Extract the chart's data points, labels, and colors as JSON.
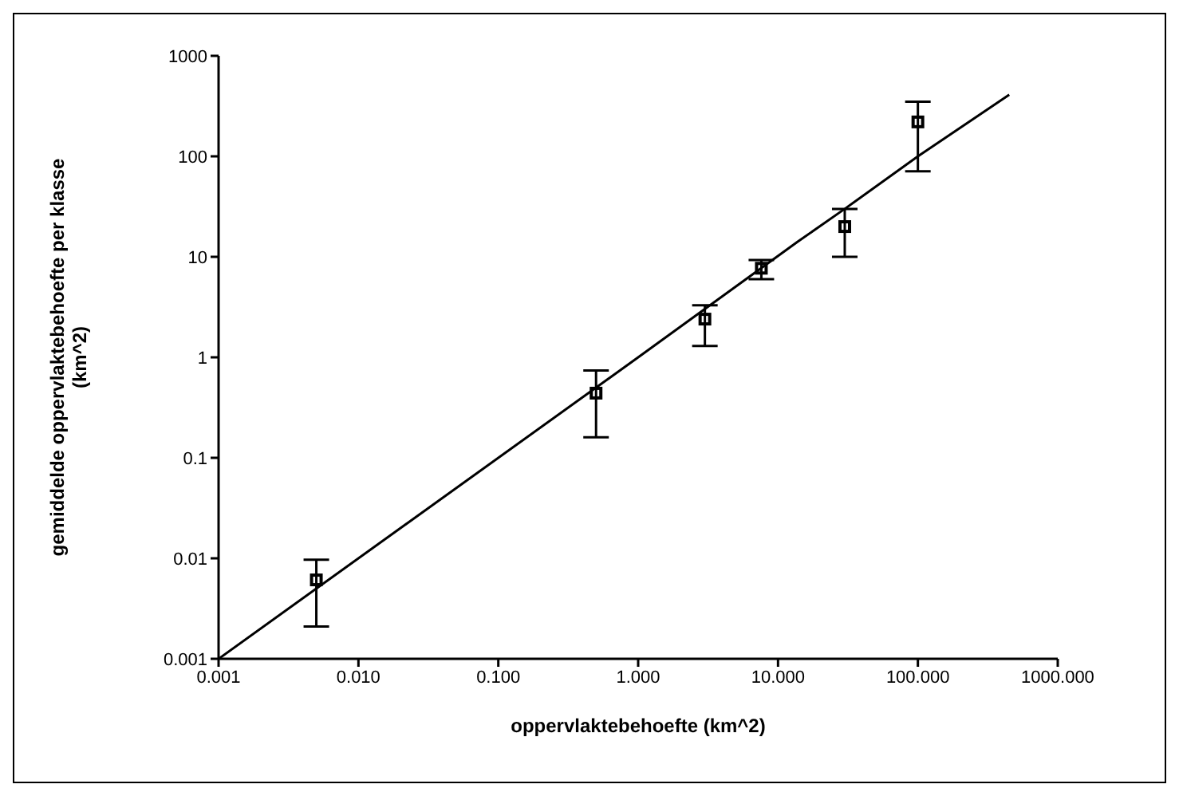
{
  "chart_data": {
    "type": "scatter",
    "xlabel": "oppervlaktebehoefte (km^2)",
    "ylabel": "gemiddelde oppervlaktebehoefte per klasse (km^2)",
    "log": "xy",
    "grid": false,
    "legend": false,
    "xlim": [
      0.001,
      1000
    ],
    "ylim": [
      0.001,
      1000
    ],
    "xticks": [
      {
        "value": 0.001,
        "label": "0.001"
      },
      {
        "value": 0.01,
        "label": "0.010"
      },
      {
        "value": 0.1,
        "label": "0.100"
      },
      {
        "value": 1,
        "label": "1.000"
      },
      {
        "value": 10,
        "label": "10.000"
      },
      {
        "value": 100,
        "label": "100.000"
      },
      {
        "value": 1000,
        "label": "1000.000"
      }
    ],
    "yticks": [
      0.001,
      0.01,
      0.1,
      1,
      10,
      100,
      1000
    ],
    "series": [
      {
        "type": "line",
        "color": "#000000",
        "marker": "none",
        "line_style": "solid",
        "x": [
          0.001,
          1,
          13.7,
          30,
          100,
          450
        ],
        "values": [
          0.001,
          1,
          14,
          30,
          100,
          410
        ]
      },
      {
        "color": "#000000",
        "marker": "square",
        "x": [
          0.005,
          0.5,
          3,
          7.6,
          30,
          100
        ],
        "values": [
          0.0061,
          0.44,
          2.4,
          7.7,
          20,
          220
        ],
        "errors": [
          [
            0.0021,
            0.0097
          ],
          [
            0.16,
            0.74
          ],
          [
            1.3,
            3.3
          ],
          [
            6,
            9.3
          ],
          [
            10,
            30
          ],
          [
            71,
            350
          ]
        ]
      }
    ]
  }
}
